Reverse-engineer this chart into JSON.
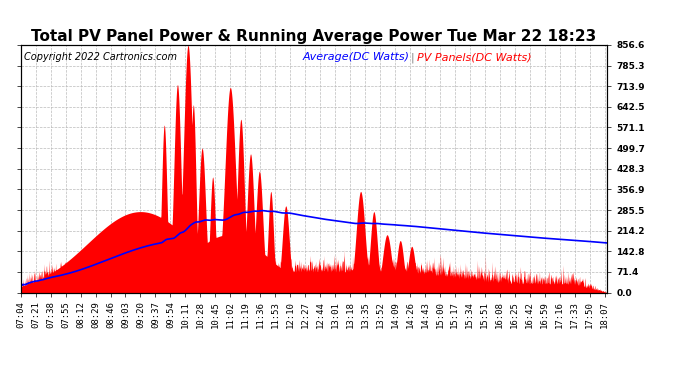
{
  "title": "Total PV Panel Power & Running Average Power Tue Mar 22 18:23",
  "copyright_text": "Copyright 2022 Cartronics.com",
  "legend_avg": "Average(DC Watts)",
  "legend_pv": "PV Panels(DC Watts)",
  "ylabel_right_ticks": [
    0.0,
    71.4,
    142.8,
    214.2,
    285.5,
    356.9,
    428.3,
    499.7,
    571.1,
    642.5,
    713.9,
    785.3,
    856.6
  ],
  "ymin": 0.0,
  "ymax": 856.6,
  "xstart_hour": 7,
  "xstart_min": 4,
  "xend_hour": 18,
  "xend_min": 10,
  "background_color": "#ffffff",
  "pv_color": "#ff0000",
  "avg_color": "#0000ff",
  "grid_color": "#bbbbbb",
  "title_fontsize": 11,
  "copyright_fontsize": 7,
  "legend_fontsize": 8,
  "tick_fontsize": 6.5,
  "xtick_interval_min": 17
}
